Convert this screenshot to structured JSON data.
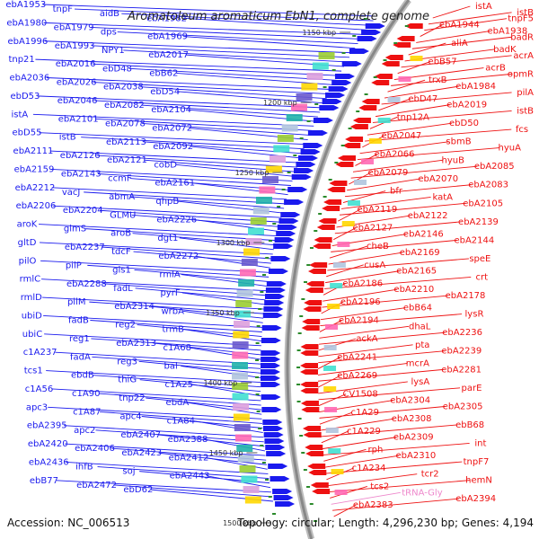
{
  "title": "Aromatoleum aromaticum EbN1, complete genome",
  "footer": {
    "accession": "Accession: NC_006513",
    "topology": "Topology: circular; Length: 4,296,230 bp; Genes: 4,194"
  },
  "colors": {
    "forward": "#1a1aee",
    "reverse": "#ee1111",
    "rna": "#ee88cc",
    "backbone": "#888888",
    "tick": "#2a8a2a"
  },
  "ticks": [
    "1150 kbp",
    "1200 kbp",
    "1250 kbp",
    "1300 kbp",
    "1350 kbp",
    "1400 kbp",
    "1450 kbp",
    "1500 kbp"
  ],
  "left_labels": [
    "ebA1953",
    "tnpF",
    "aidB",
    "ebA1982",
    "ebA1980",
    "ebA1979",
    "dps",
    "ebA1969",
    "ebA1996",
    "ebA1993",
    "NPY1",
    "ebA2017",
    "tnp21",
    "ebA2016",
    "ebD48",
    "ebB62",
    "ebA2036",
    "ebA2026",
    "ebA2038",
    "ebD54",
    "ebD53",
    "ebA2046",
    "ebA2082",
    "ebA2104",
    "istA",
    "ebA2101",
    "ebA2078",
    "ebA2072",
    "ebD55",
    "istB",
    "ebA2113",
    "ebA2092",
    "ebA2111",
    "ebA2126",
    "ebA2121",
    "cobD",
    "ebA2159",
    "ebA2143",
    "ccmF",
    "ebA2161",
    "ebA2212",
    "vacJ",
    "abmA",
    "qhpB",
    "ebA2206",
    "ebA2204",
    "GLMU",
    "ebA2226",
    "aroK",
    "glmS",
    "aroB",
    "dgt1",
    "gltD",
    "ebA2237",
    "tdcF",
    "ebA2272",
    "pilO",
    "pilP",
    "gls1",
    "rmlA",
    "rmlC",
    "ebA2288",
    "fadL",
    "pyrF",
    "rmlD",
    "pilM",
    "ebA2314",
    "wrbA",
    "ubiD",
    "fadB",
    "reg2",
    "trmB",
    "ubiC",
    "reg1",
    "ebA2313",
    "c1A68",
    "c1A237",
    "fadA",
    "reg3",
    "bal",
    "tcs1",
    "ebdB",
    "thiG",
    "c1A25",
    "c1A56",
    "c1A90",
    "tnp22",
    "ebdA",
    "apc3",
    "c1A87",
    "apc4",
    "c1A84",
    "ebA2395",
    "apc2",
    "ebA2407",
    "ebA2388",
    "ebA2420",
    "ebA2406",
    "ebA2423",
    "ebA2412",
    "ebA2436",
    "ihfB",
    "soj",
    "ebA2443",
    "ebB77",
    "ebA2472",
    "ebD62"
  ],
  "right_labels": [
    "istA",
    "istB",
    "tnpF5",
    "ebA1944",
    "ebA1938",
    "badR",
    "aliA",
    "badK",
    "acrA",
    "ebB57",
    "acrB",
    "opmR",
    "trxB",
    "ebA1984",
    "pilA",
    "ebD47",
    "ebA2019",
    "istB",
    "tnp12A",
    "ebD50",
    "fcs",
    "ebA2047",
    "sbmB",
    "hyuA",
    "ebA2066",
    "hyuB",
    "ebA2085",
    "ebA2079",
    "ebA2070",
    "ebA2083",
    "bfr",
    "katA",
    "ebA2105",
    "ebA2119",
    "ebA2122",
    "ebA2139",
    "ebA2127",
    "ebA2146",
    "ebA2144",
    "cheB",
    "ebA2169",
    "speE",
    "cusA",
    "ebA2165",
    "crt",
    "ebA2186",
    "ebA2210",
    "ebA2178",
    "ebA2196",
    "ebB64",
    "lysR",
    "ebA2194",
    "dhaL",
    "ebA2236",
    "ackA",
    "pta",
    "ebA2239",
    "ebA2241",
    "mcrA",
    "ebA2281",
    "ebA2269",
    "lysA",
    "parE",
    "CV1508",
    "ebA2304",
    "ebA2305",
    "c1A29",
    "ebA2308",
    "ebB68",
    "c1A229",
    "ebA2309",
    "int",
    "rph",
    "ebA2310",
    "tnpF7",
    "c1A234",
    "tcr2",
    "hemN",
    "tcs2",
    "tRNA-Gly",
    "ebA2394",
    "ebA2383"
  ]
}
